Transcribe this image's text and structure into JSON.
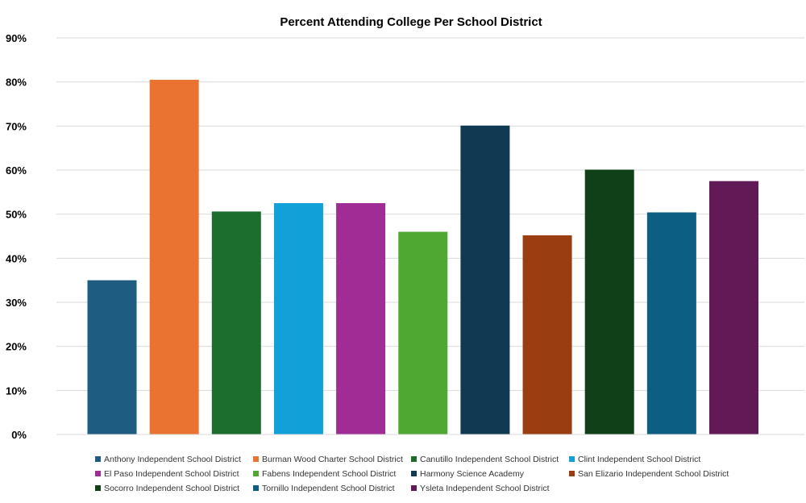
{
  "chart_data": {
    "type": "bar",
    "title": "Percent Attending College Per School District",
    "xlabel": "",
    "ylabel": "",
    "ylim": [
      0,
      90
    ],
    "yticks": [
      "0%",
      "10%",
      "20%",
      "30%",
      "40%",
      "50%",
      "60%",
      "70%",
      "80%",
      "90%"
    ],
    "ytick_values": [
      0,
      10,
      20,
      30,
      40,
      50,
      60,
      70,
      80,
      90
    ],
    "grid": true,
    "legend_position": "bottom",
    "categories": [
      "Anthony Independent School District",
      "Burman Wood Charter School District",
      "Canutillo Independent School District",
      "Clint Independent School District",
      "El Paso Independent School District",
      "Fabens Independent School District",
      "Harmony Science Academy",
      "San Elizario Independent School District",
      "Socorro Independent School District",
      "Tornillo Independent School District",
      "Ysleta Independent School District"
    ],
    "values": [
      35,
      80.5,
      50.6,
      52.5,
      52.5,
      46,
      70.1,
      45.2,
      60.1,
      50.4,
      57.5
    ],
    "colors": [
      "#1e5c82",
      "#eb7331",
      "#1b6e2e",
      "#12a0d8",
      "#a02c95",
      "#4fa832",
      "#0f3a52",
      "#9a3e12",
      "#104018",
      "#0c5e82",
      "#611a55"
    ]
  }
}
